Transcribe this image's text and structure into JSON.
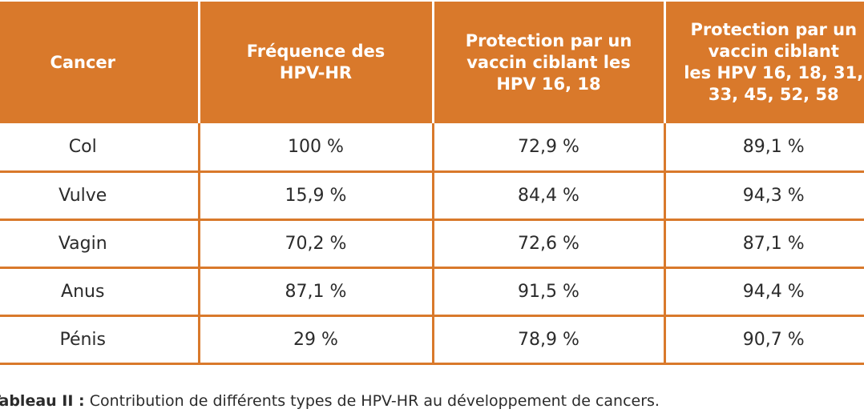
{
  "table": {
    "headers": [
      [
        "Cancer"
      ],
      [
        "Fréquence des",
        "HPV-HR"
      ],
      [
        "Protection par un",
        "vaccin ciblant les",
        "HPV 16, 18"
      ],
      [
        "Protection par un",
        "vaccin ciblant",
        "les HPV 16, 18, 31,",
        "33, 45, 52, 58"
      ]
    ],
    "rows": [
      [
        "Col",
        "100 %",
        "72,9 %",
        "89,1 %"
      ],
      [
        "Vulve",
        "15,9 %",
        "84,4 %",
        "94,3 %"
      ],
      [
        "Vagin",
        "70,2 %",
        "72,6 %",
        "87,1 %"
      ],
      [
        "Anus",
        "87,1 %",
        "91,5 %",
        "94,4 %"
      ],
      [
        "Pénis",
        "29 %",
        "78,9 %",
        "90,7 %"
      ]
    ]
  },
  "caption": {
    "label": "Tableau II :",
    "text": " Contribution de différents types de HPV-HR au développement de cancers."
  },
  "colors": {
    "accent": "#d9792b",
    "header_text": "#ffffff",
    "body_text": "#2b2b2b"
  }
}
